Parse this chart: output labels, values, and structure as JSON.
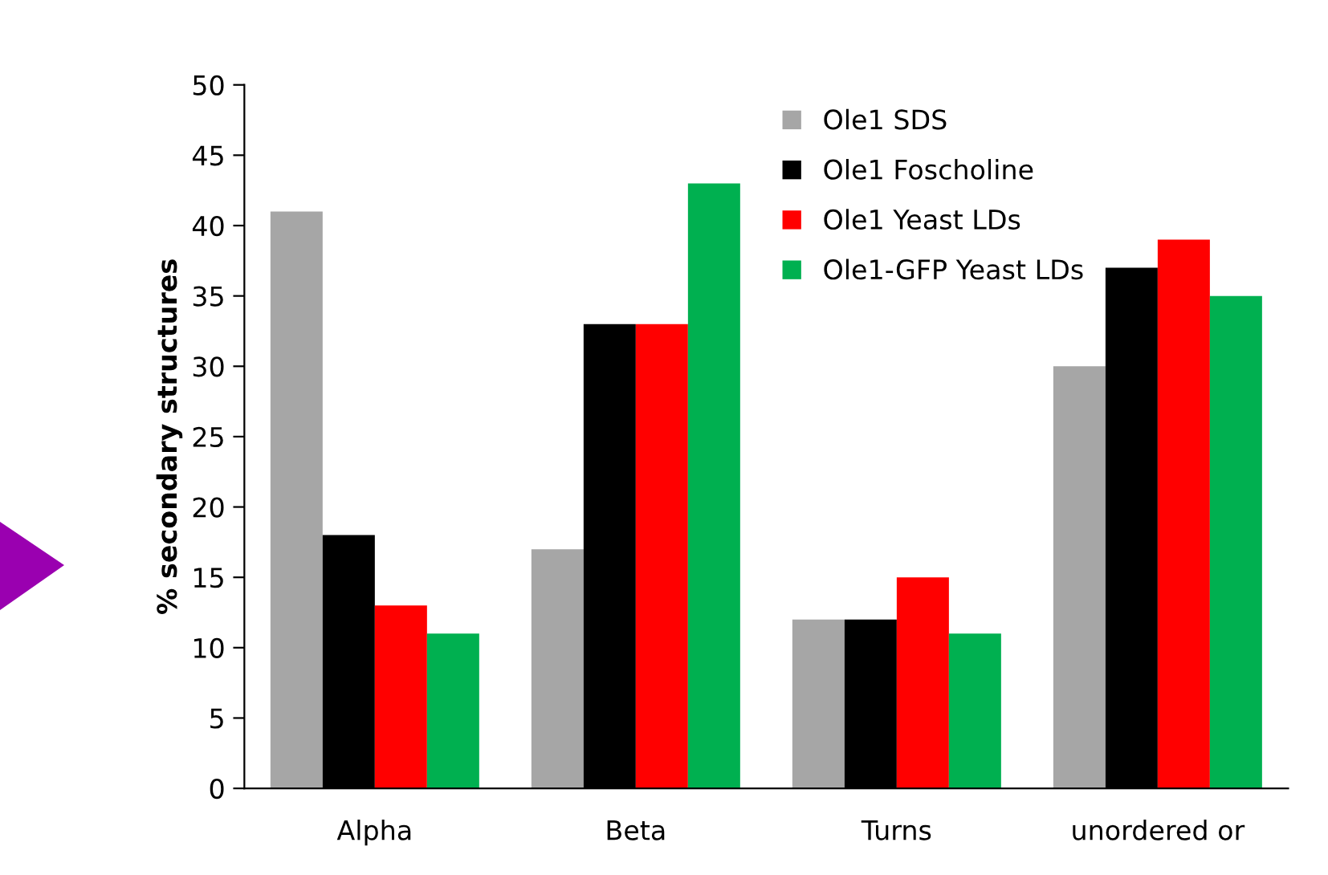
{
  "chart_data": {
    "type": "bar",
    "ylabel": "% secondary structures",
    "categories": [
      "Alpha",
      "Beta",
      "Turns",
      "unordered or"
    ],
    "series": [
      {
        "name": "Ole1 SDS",
        "color": "#a6a6a6",
        "values": [
          41,
          17,
          12,
          30
        ]
      },
      {
        "name": "Ole1 Foscholine",
        "color": "#000000",
        "values": [
          18,
          33,
          12,
          37
        ]
      },
      {
        "name": "Ole1 Yeast LDs",
        "color": "#ff0000",
        "values": [
          13,
          33,
          15,
          39
        ]
      },
      {
        "name": "Ole1-GFP Yeast LDs",
        "color": "#00b050",
        "values": [
          11,
          43,
          11,
          35
        ]
      }
    ],
    "ylim": [
      0,
      50
    ],
    "yticks": [
      0,
      5,
      10,
      15,
      20,
      25,
      30,
      35,
      40,
      45,
      50
    ],
    "grid": false,
    "legend": "top center"
  }
}
